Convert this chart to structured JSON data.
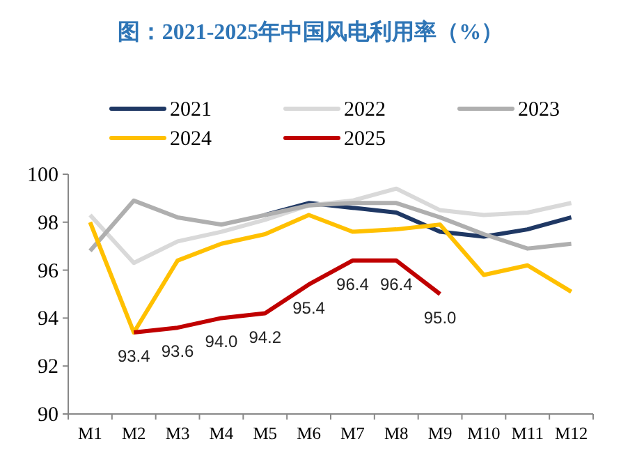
{
  "chart_data": {
    "type": "line",
    "title": "图：2021-2025年中国风电利用率（%）",
    "categories": [
      "M1",
      "M2",
      "M3",
      "M4",
      "M5",
      "M6",
      "M7",
      "M8",
      "M9",
      "M10",
      "M11",
      "M12"
    ],
    "series": [
      {
        "name": "2021",
        "color": "#1f3864",
        "values": [
          null,
          null,
          null,
          null,
          98.3,
          98.8,
          98.6,
          98.4,
          97.6,
          97.4,
          97.7,
          98.2
        ]
      },
      {
        "name": "2022",
        "color": "#d9d9d9",
        "values": [
          98.3,
          96.3,
          97.2,
          97.6,
          98.1,
          98.7,
          98.9,
          99.4,
          98.5,
          98.3,
          98.4,
          98.8
        ]
      },
      {
        "name": "2023",
        "color": "#afafaf",
        "values": [
          96.8,
          98.9,
          98.2,
          97.9,
          98.3,
          98.7,
          98.8,
          98.8,
          98.2,
          97.5,
          96.9,
          97.1
        ]
      },
      {
        "name": "2024",
        "color": "#ffc000",
        "values": [
          98.0,
          93.4,
          96.4,
          97.1,
          97.5,
          98.3,
          97.6,
          97.7,
          97.9,
          95.8,
          96.2,
          95.1
        ]
      },
      {
        "name": "2025",
        "color": "#c00000",
        "values": [
          null,
          93.4,
          93.6,
          94.0,
          94.2,
          95.4,
          96.4,
          96.4,
          95.0,
          null,
          null,
          null
        ],
        "value_labels": [
          null,
          "93.4",
          "93.6",
          "94.0",
          "94.2",
          "95.4",
          "96.4",
          "96.4",
          "95.0",
          null,
          null,
          null
        ]
      }
    ],
    "ylim": [
      90,
      100
    ],
    "yticks": [
      90,
      92,
      94,
      96,
      98,
      100
    ],
    "legend": "top",
    "marker": "none",
    "line_style": "solid"
  }
}
